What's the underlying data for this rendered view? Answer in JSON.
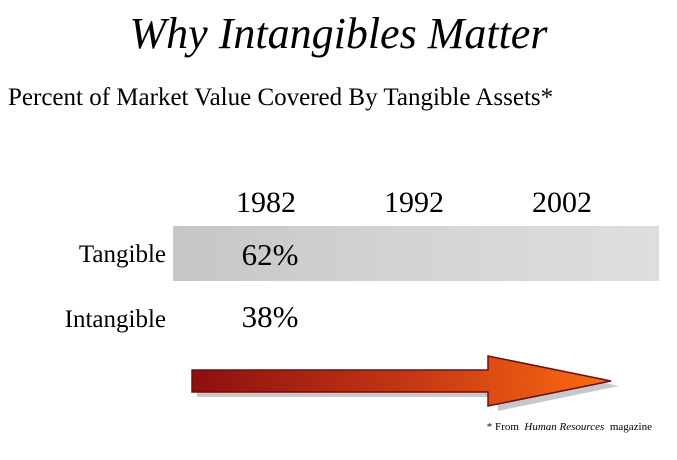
{
  "slide": {
    "title": "Why Intangibles Matter",
    "subtitle": "Percent of Market Value Covered By Tangible Assets*"
  },
  "table": {
    "years": [
      "1982",
      "1992",
      "2002"
    ],
    "rows": [
      {
        "label": "Tangible",
        "values": [
          "62%",
          "",
          ""
        ]
      },
      {
        "label": "Intangible",
        "values": [
          "38%",
          "",
          ""
        ]
      }
    ]
  },
  "arrow": {
    "icon": "right-arrow-icon",
    "gradient_start": "#8e0f0f",
    "gradient_end": "#ff6a12"
  },
  "footnote": {
    "prefix": "* From",
    "source": "Human Resources",
    "suffix": "magazine"
  }
}
